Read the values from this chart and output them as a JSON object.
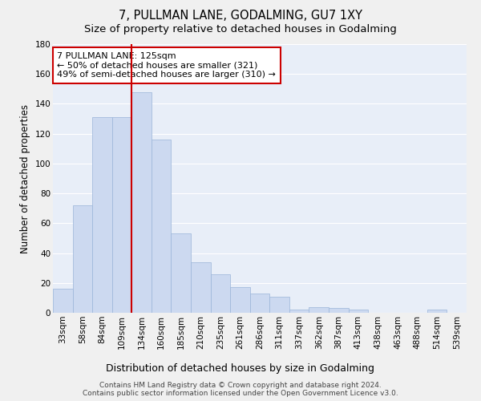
{
  "title": "7, PULLMAN LANE, GODALMING, GU7 1XY",
  "subtitle": "Size of property relative to detached houses in Godalming",
  "xlabel": "Distribution of detached houses by size in Godalming",
  "ylabel": "Number of detached properties",
  "bar_labels": [
    "33sqm",
    "58sqm",
    "84sqm",
    "109sqm",
    "134sqm",
    "160sqm",
    "185sqm",
    "210sqm",
    "235sqm",
    "261sqm",
    "286sqm",
    "311sqm",
    "337sqm",
    "362sqm",
    "387sqm",
    "413sqm",
    "438sqm",
    "463sqm",
    "488sqm",
    "514sqm",
    "539sqm"
  ],
  "bar_values": [
    16,
    72,
    131,
    131,
    148,
    116,
    53,
    34,
    26,
    17,
    13,
    11,
    2,
    4,
    3,
    2,
    0,
    0,
    0,
    2,
    0
  ],
  "bar_color": "#ccd9f0",
  "bar_edge_color": "#9ab5d9",
  "fig_bg_color": "#f0f0f0",
  "plot_bg_color": "#e8eef8",
  "grid_color": "#ffffff",
  "vline_color": "#cc0000",
  "vline_x_index": 3.5,
  "annotation_text": "7 PULLMAN LANE: 125sqm\n← 50% of detached houses are smaller (321)\n49% of semi-detached houses are larger (310) →",
  "annotation_box_color": "#ffffff",
  "annotation_box_edge": "#cc0000",
  "ylim": [
    0,
    180
  ],
  "yticks": [
    0,
    20,
    40,
    60,
    80,
    100,
    120,
    140,
    160,
    180
  ],
  "footer_text": "Contains HM Land Registry data © Crown copyright and database right 2024.\nContains public sector information licensed under the Open Government Licence v3.0.",
  "title_fontsize": 10.5,
  "subtitle_fontsize": 9.5,
  "ylabel_fontsize": 8.5,
  "xlabel_fontsize": 9,
  "tick_fontsize": 7.5,
  "annotation_fontsize": 8,
  "footer_fontsize": 6.5
}
